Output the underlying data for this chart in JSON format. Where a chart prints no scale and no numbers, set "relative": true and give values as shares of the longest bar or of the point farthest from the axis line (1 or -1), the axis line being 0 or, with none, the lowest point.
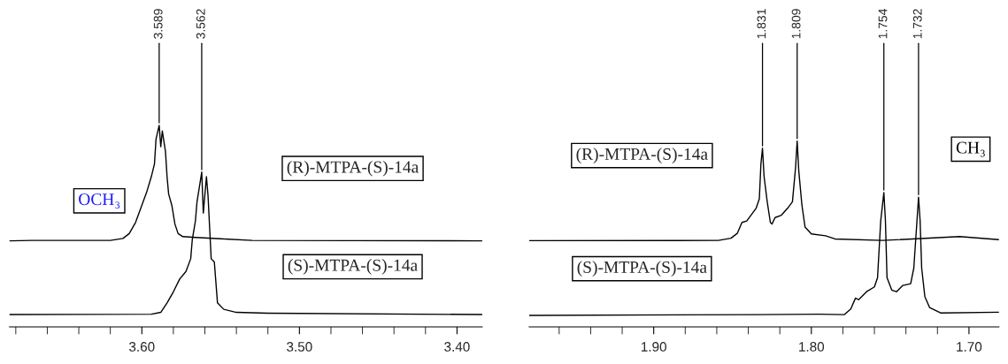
{
  "chart_data": [
    {
      "type": "line",
      "relative": true,
      "xlim": [
        3.684,
        3.384
      ],
      "xticks": [
        {
          "value": 3.6,
          "label": "3.60"
        },
        {
          "value": 3.5,
          "label": "3.50"
        },
        {
          "value": 3.4,
          "label": "3.40"
        }
      ],
      "series": [
        {
          "name": "(R)-MTPA-(S)-14a",
          "color": "#000000",
          "x": [
            3.684,
            3.67,
            3.62,
            3.612,
            3.608,
            3.604,
            3.597,
            3.594,
            3.592,
            3.591,
            3.589,
            3.588,
            3.587,
            3.585,
            3.584,
            3.583,
            3.581,
            3.579,
            3.577,
            3.574,
            3.566,
            3.55,
            3.53,
            3.384
          ],
          "values": [
            0.427,
            0.429,
            0.429,
            0.439,
            0.463,
            0.518,
            0.667,
            0.745,
            0.808,
            0.932,
            1,
            0.894,
            0.972,
            0.87,
            0.745,
            0.659,
            0.604,
            0.51,
            0.463,
            0.448,
            0.444,
            0.437,
            0.429,
            0.427
          ]
        },
        {
          "name": "(S)-MTPA-(S)-14a",
          "color": "#000000",
          "x": [
            3.684,
            3.594,
            3.588,
            3.584,
            3.58,
            3.576,
            3.572,
            3.569,
            3.568,
            3.566,
            3.565,
            3.563,
            3.562,
            3.561,
            3.559,
            3.558,
            3.557,
            3.556,
            3.554,
            3.552,
            3.548,
            3.54,
            3.52,
            3.384
          ],
          "values": [
            0.061,
            0.063,
            0.072,
            0.119,
            0.174,
            0.237,
            0.275,
            0.338,
            0.432,
            0.526,
            0.62,
            0.718,
            0.768,
            0.565,
            0.745,
            0.651,
            0.495,
            0.338,
            0.322,
            0.119,
            0.087,
            0.072,
            0.068,
            0.061
          ]
        }
      ],
      "annotations": [
        "OCH₃",
        {
          "text": "3.589",
          "x": 3.589,
          "y": 1
        },
        {
          "text": "3.562",
          "x": 3.562,
          "y": 0.768
        }
      ]
    },
    {
      "type": "line",
      "relative": true,
      "xlim": [
        1.979,
        1.681
      ],
      "xticks": [
        {
          "value": 1.9,
          "label": "1.90"
        },
        {
          "value": 1.8,
          "label": "1.80"
        },
        {
          "value": 1.7,
          "label": "1.70"
        }
      ],
      "series": [
        {
          "name": "(R)-MTPA-(S)-14a",
          "color": "#000000",
          "x": [
            1.979,
            1.859,
            1.851,
            1.847,
            1.844,
            1.841,
            1.835,
            1.833,
            1.832,
            1.831,
            1.83,
            1.828,
            1.826,
            1.825,
            1.823,
            1.819,
            1.815,
            1.812,
            1.81,
            1.809,
            1.808,
            1.806,
            1.804,
            1.8,
            1.791,
            1.785,
            1.755,
            1.706,
            1.681
          ],
          "values": [
            0.464,
            0.465,
            0.477,
            0.503,
            0.562,
            0.57,
            0.639,
            0.689,
            0.876,
            0.961,
            0.809,
            0.673,
            0.562,
            0.553,
            0.588,
            0.601,
            0.639,
            0.673,
            0.859,
            1,
            0.842,
            0.656,
            0.537,
            0.5,
            0.49,
            0.473,
            0.465,
            0.486,
            0.469
          ]
        },
        {
          "name": "(S)-MTPA-(S)-14a",
          "color": "#000000",
          "x": [
            1.979,
            1.835,
            1.795,
            1.779,
            1.775,
            1.772,
            1.77,
            1.765,
            1.76,
            1.758,
            1.756,
            1.754,
            1.753,
            1.752,
            1.749,
            1.746,
            1.742,
            1.737,
            1.735,
            1.733,
            1.732,
            1.731,
            1.73,
            1.728,
            1.725,
            1.718,
            1.681
          ],
          "values": [
            0.062,
            0.066,
            0.068,
            0.066,
            0.096,
            0.155,
            0.146,
            0.189,
            0.215,
            0.265,
            0.57,
            0.723,
            0.57,
            0.265,
            0.198,
            0.189,
            0.223,
            0.232,
            0.316,
            0.57,
            0.698,
            0.57,
            0.316,
            0.163,
            0.104,
            0.075,
            0.079
          ]
        }
      ],
      "annotations": [
        "CH₃",
        {
          "text": "1.831",
          "x": 1.831,
          "y": 0.961
        },
        {
          "text": "1.809",
          "x": 1.809,
          "y": 1
        },
        {
          "text": "1.754",
          "x": 1.754,
          "y": 0.723
        },
        {
          "text": "1.732",
          "x": 1.732,
          "y": 0.698
        }
      ]
    }
  ]
}
